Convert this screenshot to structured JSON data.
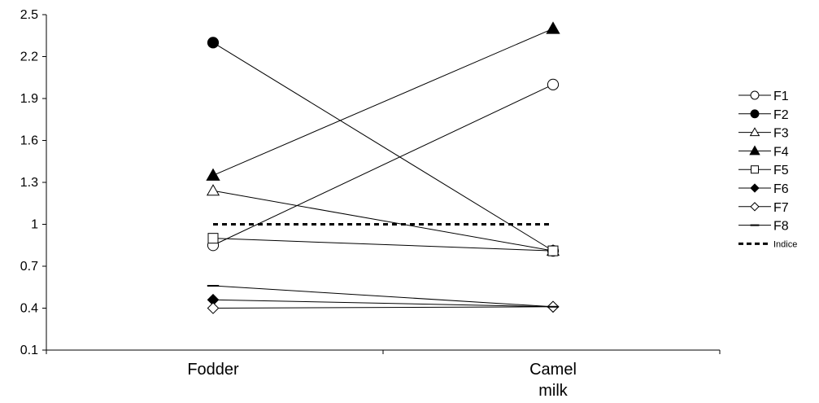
{
  "chart_data": {
    "type": "line",
    "categories": [
      "Fodder",
      "Camel\nmilk"
    ],
    "ylim": [
      0.1,
      2.5
    ],
    "yticks": [
      "0.1",
      "0.4",
      "0.7",
      "1",
      "1.3",
      "1.6",
      "1.9",
      "2.2",
      "2.5"
    ],
    "grid": false,
    "legend_position": "right",
    "series": [
      {
        "name": "F1",
        "marker": "circle-open",
        "values": [
          0.85,
          2.0
        ]
      },
      {
        "name": "F2",
        "marker": "circle-filled",
        "values": [
          2.3,
          0.81
        ]
      },
      {
        "name": "F3",
        "marker": "triangle-open",
        "values": [
          1.24,
          0.81
        ]
      },
      {
        "name": "F4",
        "marker": "triangle-filled",
        "values": [
          1.35,
          2.4
        ]
      },
      {
        "name": "F5",
        "marker": "square-open",
        "values": [
          0.9,
          0.81
        ]
      },
      {
        "name": "F6",
        "marker": "diamond-filled",
        "values": [
          0.46,
          0.41
        ]
      },
      {
        "name": "F7",
        "marker": "diamond-open",
        "values": [
          0.4,
          0.41
        ]
      },
      {
        "name": "F8",
        "marker": "dash",
        "values": [
          0.56,
          0.41
        ]
      },
      {
        "name": "Indice",
        "marker": "none",
        "line": "dotted",
        "values": [
          1.0,
          1.0
        ]
      }
    ]
  }
}
